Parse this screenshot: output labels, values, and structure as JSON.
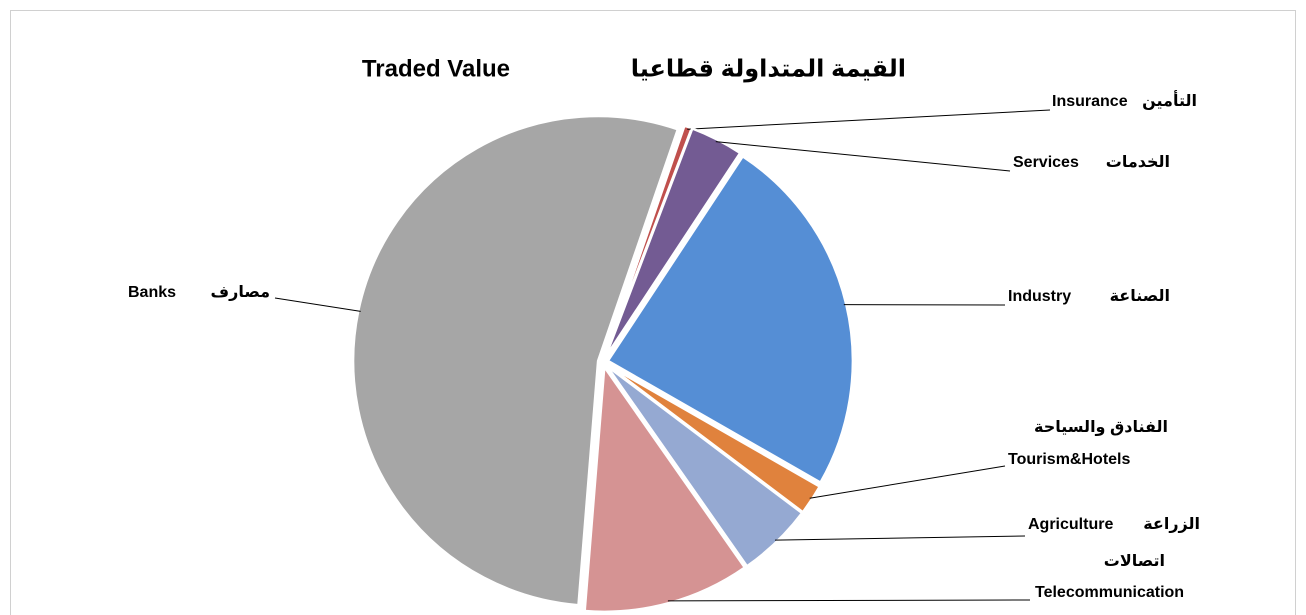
{
  "chart_data": {
    "type": "pie",
    "title_ar": "القيمة المتداولة قطاعيا",
    "title_en": "Traded Value",
    "categories": [
      "Insurance",
      "Services",
      "Industry",
      "Tourism&Hotels",
      "Agriculture",
      "Telecommunication",
      "Banks"
    ],
    "categories_ar": [
      "التأمين",
      "الخدمات",
      "الصناعة",
      "الفنادق والسياحة",
      "الزراعة",
      "اتصالات",
      "مصارف"
    ],
    "values": [
      0.5,
      3.5,
      24,
      2,
      5,
      11,
      54
    ],
    "colors": [
      "#c0504d",
      "#735b93",
      "#558ed5",
      "#e0823d",
      "#95a9d2",
      "#d59393",
      "#a6a6a6"
    ]
  }
}
